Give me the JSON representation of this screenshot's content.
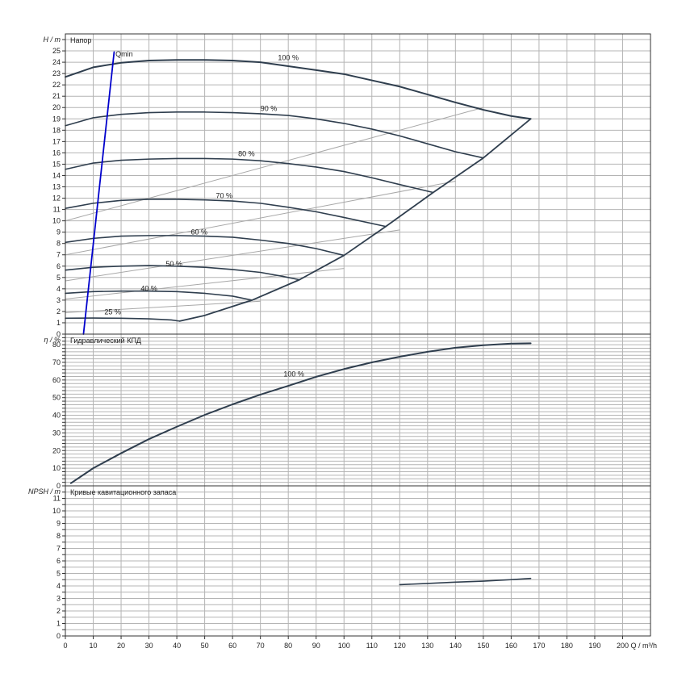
{
  "chart_data": {
    "type": "line",
    "x_axis": {
      "name": "Q",
      "unit": "m³/h",
      "min": 0,
      "max": 210,
      "tick_step": 10,
      "label_every": 10,
      "label_max": 200
    },
    "panels": [
      {
        "id": "head",
        "title": "Напор",
        "y_axis": {
          "name": "H",
          "unit": "m",
          "min": 0,
          "max": 26.5,
          "tick_step": 1,
          "label_every": 1,
          "label_max": 25
        },
        "series": [
          {
            "name": "100 %",
            "label_at": [
              80,
              24.2
            ],
            "points": [
              [
                0,
                22.7
              ],
              [
                10,
                23.55
              ],
              [
                20,
                23.95
              ],
              [
                30,
                24.15
              ],
              [
                40,
                24.2
              ],
              [
                50,
                24.2
              ],
              [
                60,
                24.15
              ],
              [
                70,
                24.0
              ],
              [
                80,
                23.65
              ],
              [
                90,
                23.3
              ],
              [
                100,
                22.95
              ],
              [
                110,
                22.4
              ],
              [
                120,
                21.85
              ],
              [
                130,
                21.15
              ],
              [
                140,
                20.45
              ],
              [
                150,
                19.8
              ],
              [
                160,
                19.25
              ],
              [
                167,
                19.0
              ]
            ]
          },
          {
            "name": "90 %",
            "label_at": [
              73,
              19.7
            ],
            "points": [
              [
                0,
                18.4
              ],
              [
                10,
                19.1
              ],
              [
                20,
                19.4
              ],
              [
                30,
                19.55
              ],
              [
                40,
                19.6
              ],
              [
                50,
                19.6
              ],
              [
                60,
                19.55
              ],
              [
                70,
                19.45
              ],
              [
                80,
                19.3
              ],
              [
                90,
                19.0
              ],
              [
                100,
                18.6
              ],
              [
                110,
                18.1
              ],
              [
                120,
                17.5
              ],
              [
                130,
                16.8
              ],
              [
                140,
                16.1
              ],
              [
                150,
                15.55
              ]
            ]
          },
          {
            "name": "80 %",
            "label_at": [
              65,
              15.7
            ],
            "points": [
              [
                0,
                14.55
              ],
              [
                10,
                15.1
              ],
              [
                20,
                15.35
              ],
              [
                30,
                15.45
              ],
              [
                40,
                15.5
              ],
              [
                50,
                15.5
              ],
              [
                60,
                15.45
              ],
              [
                70,
                15.3
              ],
              [
                80,
                15.05
              ],
              [
                90,
                14.75
              ],
              [
                100,
                14.35
              ],
              [
                110,
                13.8
              ],
              [
                120,
                13.2
              ],
              [
                132,
                12.5
              ]
            ]
          },
          {
            "name": "70 %",
            "label_at": [
              57,
              12.0
            ],
            "points": [
              [
                0,
                11.1
              ],
              [
                10,
                11.55
              ],
              [
                20,
                11.8
              ],
              [
                30,
                11.9
              ],
              [
                40,
                11.9
              ],
              [
                50,
                11.85
              ],
              [
                60,
                11.75
              ],
              [
                70,
                11.55
              ],
              [
                80,
                11.2
              ],
              [
                90,
                10.8
              ],
              [
                100,
                10.3
              ],
              [
                115,
                9.5
              ]
            ]
          },
          {
            "name": "60 %",
            "label_at": [
              48,
              8.8
            ],
            "points": [
              [
                0,
                8.1
              ],
              [
                10,
                8.45
              ],
              [
                20,
                8.65
              ],
              [
                30,
                8.7
              ],
              [
                40,
                8.7
              ],
              [
                50,
                8.65
              ],
              [
                60,
                8.55
              ],
              [
                70,
                8.3
              ],
              [
                80,
                8.0
              ],
              [
                90,
                7.55
              ],
              [
                100,
                6.95
              ]
            ]
          },
          {
            "name": "50 %",
            "label_at": [
              39,
              6.0
            ],
            "points": [
              [
                0,
                5.65
              ],
              [
                10,
                5.9
              ],
              [
                20,
                6.0
              ],
              [
                30,
                6.05
              ],
              [
                40,
                6.0
              ],
              [
                50,
                5.9
              ],
              [
                60,
                5.7
              ],
              [
                70,
                5.45
              ],
              [
                78,
                5.1
              ],
              [
                84,
                4.8
              ]
            ]
          },
          {
            "name": "40 %",
            "label_at": [
              30,
              3.8
            ],
            "points": [
              [
                0,
                3.6
              ],
              [
                10,
                3.75
              ],
              [
                20,
                3.8
              ],
              [
                30,
                3.8
              ],
              [
                40,
                3.75
              ],
              [
                50,
                3.6
              ],
              [
                60,
                3.35
              ],
              [
                67,
                3.0
              ]
            ]
          },
          {
            "name": "25 %",
            "label_at": [
              17,
              1.75
            ],
            "points": [
              [
                0,
                1.4
              ],
              [
                10,
                1.42
              ],
              [
                20,
                1.4
              ],
              [
                30,
                1.35
              ],
              [
                38,
                1.25
              ],
              [
                41,
                1.15
              ]
            ]
          },
          {
            "name": "",
            "role": "operating-limit",
            "points": [
              [
                41,
                1.15
              ],
              [
                50,
                1.65
              ],
              [
                67,
                3.0
              ],
              [
                84,
                4.8
              ],
              [
                100,
                6.95
              ],
              [
                115,
                9.5
              ],
              [
                132,
                12.5
              ],
              [
                150,
                15.55
              ],
              [
                167,
                19.0
              ]
            ]
          },
          {
            "name": "",
            "role": "efficiency-guide",
            "points": [
              [
                0,
                10.0
              ],
              [
                150,
                20.0
              ]
            ]
          },
          {
            "name": "",
            "role": "efficiency-guide",
            "points": [
              [
                0,
                7.0
              ],
              [
                140,
                13.5
              ]
            ]
          },
          {
            "name": "",
            "role": "efficiency-guide",
            "points": [
              [
                0,
                4.7
              ],
              [
                120,
                9.2
              ]
            ]
          },
          {
            "name": "",
            "role": "efficiency-guide",
            "points": [
              [
                0,
                3.1
              ],
              [
                100,
                5.8
              ]
            ]
          },
          {
            "name": "",
            "role": "efficiency-guide",
            "points": [
              [
                0,
                1.9
              ],
              [
                70,
                2.9
              ]
            ]
          },
          {
            "name": "Qmin",
            "role": "qmin",
            "label_at": [
              18,
              24.5
            ],
            "color": "#0000cc",
            "points": [
              [
                6.5,
                0
              ],
              [
                17.5,
                24.9
              ]
            ]
          }
        ]
      },
      {
        "id": "efficiency",
        "title": "Гидравлический КПД",
        "y_axis": {
          "name": "η",
          "unit": "%",
          "min": 0,
          "max": 86,
          "tick_step": 2,
          "label_every": 10,
          "label_max": 80
        },
        "series": [
          {
            "name": "100 %",
            "label_at": [
              82,
              62
            ],
            "points": [
              [
                2,
                1.5
              ],
              [
                10,
                10
              ],
              [
                20,
                18.5
              ],
              [
                30,
                26.5
              ],
              [
                40,
                33.5
              ],
              [
                50,
                40.2
              ],
              [
                60,
                46.2
              ],
              [
                70,
                51.7
              ],
              [
                80,
                56.7
              ],
              [
                90,
                61.8
              ],
              [
                100,
                66.2
              ],
              [
                110,
                70
              ],
              [
                120,
                73.2
              ],
              [
                130,
                76
              ],
              [
                140,
                78.3
              ],
              [
                150,
                79.7
              ],
              [
                160,
                80.6
              ],
              [
                167,
                80.8
              ]
            ]
          }
        ]
      },
      {
        "id": "npsh",
        "title": "Кривые кавитационного запаса",
        "y_axis": {
          "name": "NPSH",
          "unit": "m",
          "min": 0,
          "max": 12,
          "tick_step": 0.5,
          "label_every": 1,
          "label_max": 11
        },
        "series": [
          {
            "name": "",
            "points": [
              [
                120,
                4.1
              ],
              [
                130,
                4.2
              ],
              [
                140,
                4.3
              ],
              [
                150,
                4.38
              ],
              [
                160,
                4.5
              ],
              [
                167,
                4.6
              ]
            ]
          }
        ]
      }
    ],
    "grid": true
  }
}
